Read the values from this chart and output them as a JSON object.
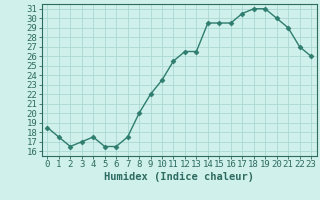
{
  "x": [
    0,
    1,
    2,
    3,
    4,
    5,
    6,
    7,
    8,
    9,
    10,
    11,
    12,
    13,
    14,
    15,
    16,
    17,
    18,
    19,
    20,
    21,
    22,
    23
  ],
  "y": [
    18.5,
    17.5,
    16.5,
    17.0,
    17.5,
    16.5,
    16.5,
    17.5,
    20.0,
    22.0,
    23.5,
    25.5,
    26.5,
    26.5,
    29.5,
    29.5,
    29.5,
    30.5,
    31.0,
    31.0,
    30.0,
    29.0,
    27.0,
    26.0
  ],
  "line_color": "#2e7d6e",
  "marker": "D",
  "marker_size": 2.5,
  "bg_color": "#cff0eb",
  "grid_color": "#aad8d2",
  "xlabel": "Humidex (Indice chaleur)",
  "ylabel": "",
  "xlim": [
    -0.5,
    23.5
  ],
  "ylim": [
    15.5,
    31.5
  ],
  "yticks": [
    16,
    17,
    18,
    19,
    20,
    21,
    22,
    23,
    24,
    25,
    26,
    27,
    28,
    29,
    30,
    31
  ],
  "xticks": [
    0,
    1,
    2,
    3,
    4,
    5,
    6,
    7,
    8,
    9,
    10,
    11,
    12,
    13,
    14,
    15,
    16,
    17,
    18,
    19,
    20,
    21,
    22,
    23
  ],
  "xlabel_fontsize": 7.5,
  "tick_fontsize": 6.5,
  "axis_color": "#2e6b60",
  "linewidth": 1.0
}
